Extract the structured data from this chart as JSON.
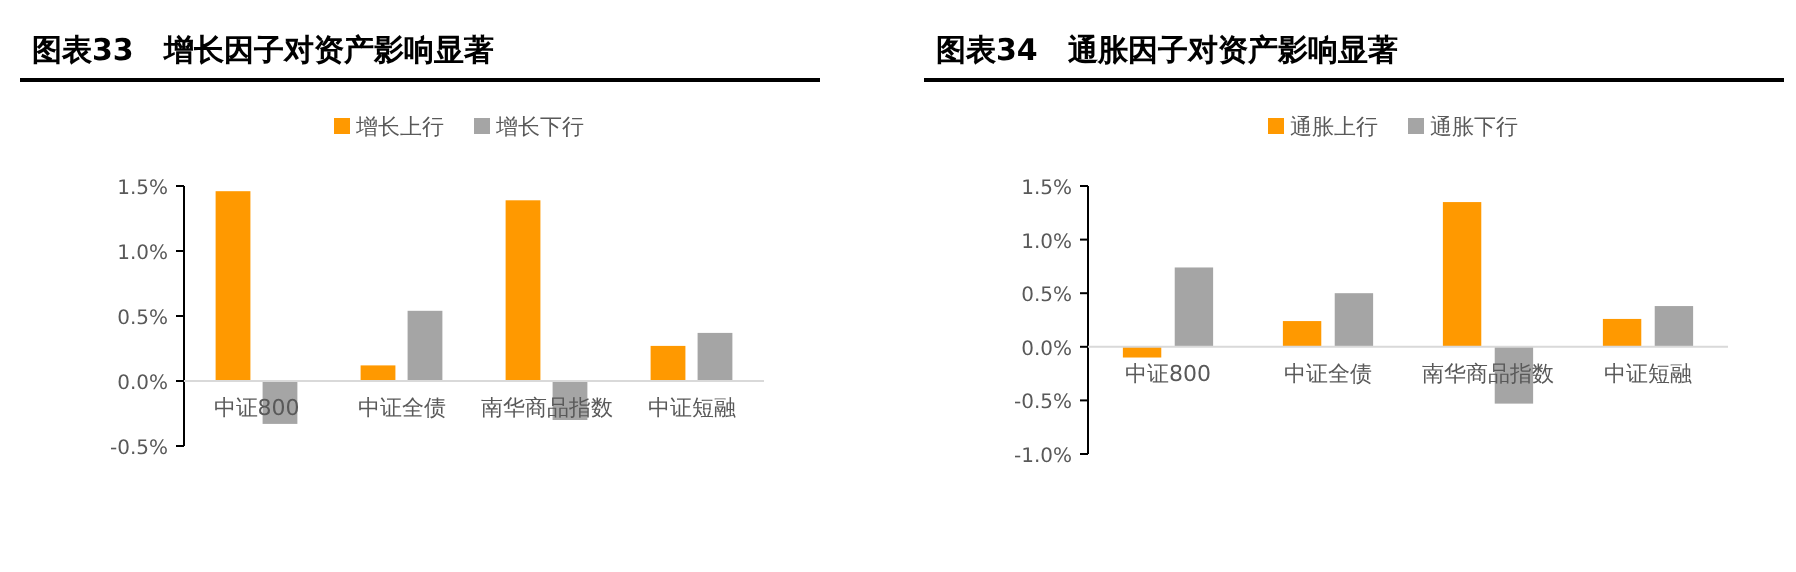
{
  "chart_data": [
    {
      "type": "bar",
      "title": "图表33　增长因子对资产影响显著",
      "categories": [
        "中证800",
        "中证全债",
        "南华商品指数",
        "中证短融"
      ],
      "series": [
        {
          "name": "增长上行",
          "color": "#ff9900",
          "values": [
            1.46,
            0.12,
            1.39,
            0.27
          ]
        },
        {
          "name": "增长下行",
          "color": "#a5a5a5",
          "values": [
            -0.33,
            0.54,
            -0.3,
            0.37
          ]
        }
      ],
      "ylim": [
        -0.5,
        1.5
      ],
      "yticks": [
        {
          "value": -0.5,
          "label": "-0.5%"
        },
        {
          "value": 0,
          "label": "0.0%"
        },
        {
          "value": 0.5,
          "label": "0.5%"
        },
        {
          "value": 1,
          "label": "1.0%"
        },
        {
          "value": 1.5,
          "label": "1.5%"
        }
      ],
      "legend": "top",
      "grid": false
    },
    {
      "type": "bar",
      "title": "图表34　通胀因子对资产影响显著",
      "categories": [
        "中证800",
        "中证全债",
        "南华商品指数",
        "中证短融"
      ],
      "series": [
        {
          "name": "通胀上行",
          "color": "#ff9900",
          "values": [
            -0.1,
            0.24,
            1.35,
            0.26
          ]
        },
        {
          "name": "通胀下行",
          "color": "#a5a5a5",
          "values": [
            0.74,
            0.5,
            -0.53,
            0.38
          ]
        }
      ],
      "ylim": [
        -1.0,
        1.5
      ],
      "yticks": [
        {
          "value": -1,
          "label": "-1.0%"
        },
        {
          "value": -0.5,
          "label": "-0.5%"
        },
        {
          "value": 0,
          "label": "0.0%"
        },
        {
          "value": 0.5,
          "label": "0.5%"
        },
        {
          "value": 1,
          "label": "1.0%"
        },
        {
          "value": 1.5,
          "label": "1.5%"
        }
      ],
      "legend": "top",
      "grid": false
    }
  ]
}
